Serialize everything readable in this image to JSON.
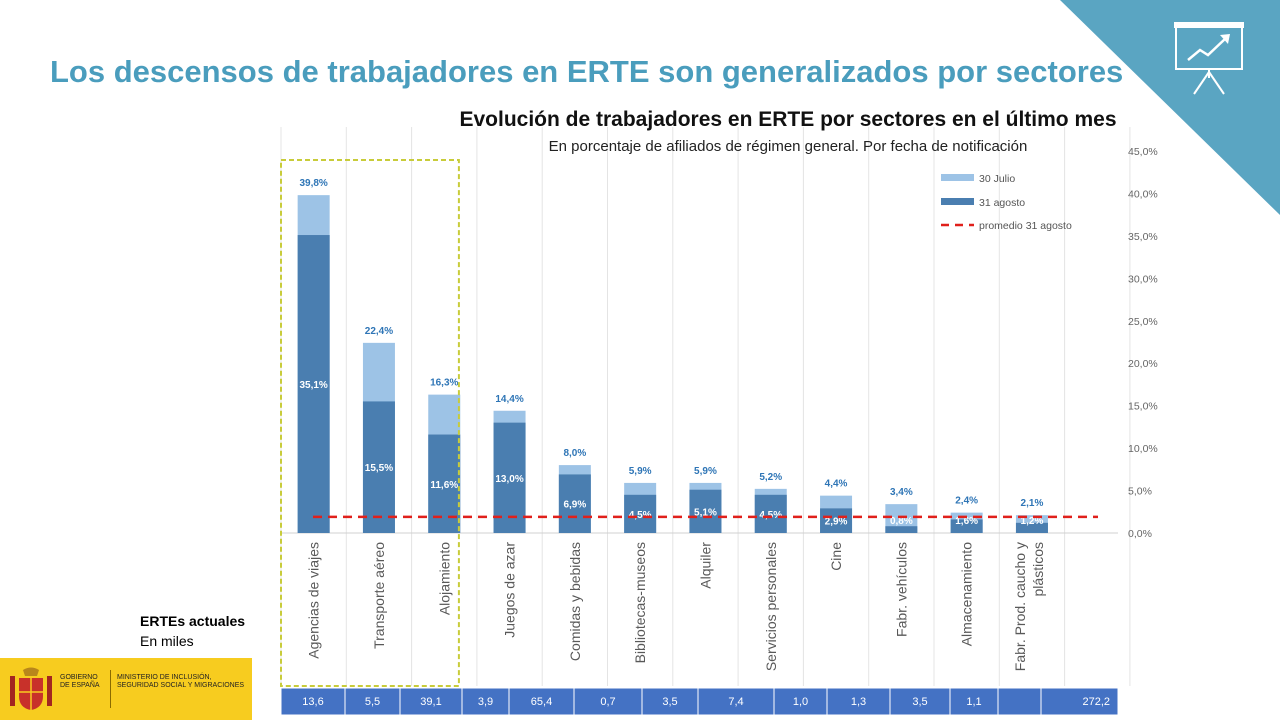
{
  "slide": {
    "title": "Los descensos de trabajadores en ERTE son generalizados por sectores"
  },
  "ertes": {
    "title": "ERTEs actuales",
    "subtitle": "En miles"
  },
  "gov": {
    "line1": "GOBIERNO DE ESPAÑA",
    "line2": "MINISTERIO DE INCLUSIÓN, SEGURIDAD SOCIAL Y MIGRACIONES"
  },
  "chart_data": {
    "type": "bar",
    "title": "Evolución de trabajadores en ERTE por sectores en el último mes",
    "subtitle": "En porcentaje de afiliados de régimen general. Por fecha de notificación",
    "categories": [
      "Agencias de viajes",
      "Transporte aéreo",
      "Alojamiento",
      "Juegos de azar",
      "Comidas y bebidas",
      "Bibliotecas-museos",
      "Alquiler",
      "Servicios personales",
      "Cine",
      "Fabr. vehículos",
      "Almacenamiento",
      "Fabr. Prod. caucho y plásticos"
    ],
    "series": [
      {
        "name": "30 Julio",
        "values": [
          39.8,
          22.4,
          16.3,
          14.4,
          8.0,
          5.9,
          5.9,
          5.2,
          4.4,
          3.4,
          2.4,
          2.1
        ],
        "labels": [
          "39,8%",
          "22,4%",
          "16,3%",
          "14,4%",
          "8,0%",
          "5,9%",
          "5,9%",
          "5,2%",
          "4,4%",
          "3,4%",
          "2,4%",
          "2,1%"
        ],
        "color": "#9dc3e6"
      },
      {
        "name": "31 agosto",
        "values": [
          35.1,
          15.5,
          11.6,
          13.0,
          6.9,
          4.5,
          5.1,
          4.5,
          2.9,
          0.8,
          1.6,
          1.2
        ],
        "labels": [
          "35,1%",
          "15,5%",
          "11,6%",
          "13,0%",
          "6,9%",
          "4,5%",
          "5,1%",
          "4,5%",
          "2,9%",
          "0,8%",
          "1,6%",
          "1,2%"
        ],
        "color": "#4a7eb0"
      }
    ],
    "average": {
      "name": "promedio 31 agosto",
      "value": 1.9,
      "color": "#e0201b"
    },
    "ylim": [
      0,
      45
    ],
    "yticks": [
      "0,0%",
      "5,0%",
      "10,0%",
      "15,0%",
      "20,0%",
      "25,0%",
      "30,0%",
      "35,0%",
      "40,0%",
      "45,0%"
    ],
    "ytick_values": [
      0,
      5,
      10,
      15,
      20,
      25,
      30,
      35,
      40,
      45
    ],
    "y_axis_side": "right",
    "gridlines": "vertical",
    "legend_position": "top-right",
    "highlight_categories": [
      0,
      1,
      2
    ],
    "highlight_color": "#c8cc3a",
    "table": {
      "values": [
        "13,6",
        "5,5",
        "39,1",
        "3,9",
        "65,4",
        "0,7",
        "3,5",
        "7,4",
        "1,0",
        "1,3",
        "3,5",
        "1,1",
        "",
        "272,2"
      ],
      "fill": "#4472c4"
    }
  }
}
